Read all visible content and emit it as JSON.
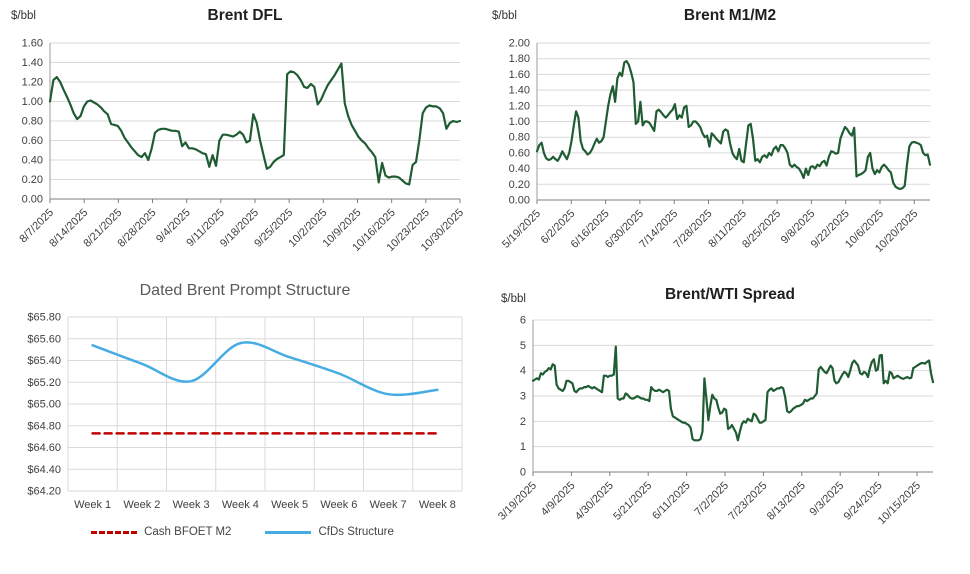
{
  "chart_data": [
    {
      "type": "line",
      "title": "Brent DFL",
      "xlabel": "",
      "ylabel": "$/bbl",
      "ylim": [
        0.0,
        1.6
      ],
      "ytick_step": 0.2,
      "tick_decimals": 2,
      "tick_prefix": "",
      "gridlines": "horizontal",
      "dark_axis": true,
      "label_rotation": -45,
      "label_span": 1.0,
      "legend_position": "none",
      "categories": [
        "8/7/2025",
        "8/14/2025",
        "8/21/2025",
        "8/28/2025",
        "9/4/2025",
        "9/11/2025",
        "9/18/2025",
        "9/25/2025",
        "10/2/2025",
        "10/9/2025",
        "10/16/2025",
        "10/23/2025",
        "10/30/2025"
      ],
      "series": [
        {
          "name": "Brent DFL",
          "color": "#1f5c33",
          "width": 2.2,
          "dash": null,
          "smooth": false,
          "values": [
            1.0,
            1.22,
            1.25,
            1.2,
            1.12,
            1.05,
            0.97,
            0.88,
            0.82,
            0.85,
            0.95,
            1.0,
            1.01,
            0.99,
            0.97,
            0.94,
            0.9,
            0.87,
            0.77,
            0.76,
            0.75,
            0.7,
            0.63,
            0.58,
            0.53,
            0.49,
            0.45,
            0.43,
            0.47,
            0.4,
            0.52,
            0.68,
            0.71,
            0.72,
            0.72,
            0.71,
            0.7,
            0.7,
            0.69,
            0.54,
            0.58,
            0.52,
            0.52,
            0.51,
            0.49,
            0.47,
            0.46,
            0.33,
            0.45,
            0.34,
            0.6,
            0.66,
            0.66,
            0.65,
            0.64,
            0.66,
            0.69,
            0.66,
            0.58,
            0.6,
            0.87,
            0.78,
            0.6,
            0.45,
            0.31,
            0.33,
            0.38,
            0.41,
            0.43,
            0.45,
            1.28,
            1.31,
            1.3,
            1.27,
            1.22,
            1.15,
            1.14,
            1.18,
            1.15,
            0.97,
            1.02,
            1.1,
            1.17,
            1.22,
            1.27,
            1.33,
            1.39,
            0.98,
            0.85,
            0.76,
            0.7,
            0.64,
            0.6,
            0.57,
            0.52,
            0.48,
            0.43,
            0.17,
            0.37,
            0.24,
            0.22,
            0.23,
            0.23,
            0.22,
            0.19,
            0.16,
            0.15,
            0.35,
            0.38,
            0.6,
            0.88,
            0.94,
            0.96,
            0.95,
            0.95,
            0.93,
            0.88,
            0.72,
            0.78,
            0.8,
            0.79,
            0.8
          ]
        }
      ]
    },
    {
      "type": "line",
      "title": "Brent M1/M2",
      "xlabel": "",
      "ylabel": "$/bbl",
      "ylim": [
        0.0,
        2.0
      ],
      "ytick_step": 0.2,
      "tick_decimals": 2,
      "tick_prefix": "",
      "gridlines": "horizontal",
      "dark_axis": true,
      "label_rotation": -45,
      "label_span": 0.96,
      "legend_position": "none",
      "categories": [
        "5/19/2025",
        "6/2/2025",
        "6/16/2025",
        "6/30/2025",
        "7/14/2025",
        "7/28/2025",
        "8/11/2025",
        "8/25/2025",
        "9/8/2025",
        "9/22/2025",
        "10/6/2025",
        "10/20/2025"
      ],
      "series": [
        {
          "name": "Brent M1/M2",
          "color": "#1f5c33",
          "width": 2.2,
          "dash": null,
          "smooth": false,
          "values": [
            0.62,
            0.7,
            0.73,
            0.6,
            0.53,
            0.51,
            0.52,
            0.55,
            0.52,
            0.5,
            0.55,
            0.62,
            0.57,
            0.52,
            0.6,
            0.75,
            0.95,
            1.13,
            1.05,
            0.75,
            0.65,
            0.62,
            0.58,
            0.6,
            0.65,
            0.72,
            0.78,
            0.73,
            0.75,
            0.8,
            1.0,
            1.2,
            1.35,
            1.45,
            1.25,
            1.55,
            1.62,
            1.58,
            1.75,
            1.77,
            1.72,
            1.62,
            1.5,
            0.97,
            1.0,
            1.25,
            0.95,
            1.0,
            1.0,
            0.98,
            0.93,
            0.88,
            1.13,
            1.15,
            1.12,
            1.08,
            1.05,
            1.08,
            1.12,
            1.15,
            1.22,
            1.03,
            1.08,
            1.05,
            1.18,
            1.2,
            0.93,
            0.95,
            1.0,
            1.0,
            0.97,
            0.93,
            0.85,
            0.8,
            0.82,
            0.68,
            0.85,
            0.82,
            0.78,
            0.75,
            0.72,
            0.87,
            0.9,
            0.88,
            0.72,
            0.6,
            0.55,
            0.52,
            0.65,
            0.5,
            0.48,
            0.72,
            0.95,
            0.97,
            0.78,
            0.5,
            0.52,
            0.48,
            0.55,
            0.57,
            0.54,
            0.6,
            0.57,
            0.65,
            0.68,
            0.62,
            0.7,
            0.7,
            0.66,
            0.6,
            0.45,
            0.42,
            0.45,
            0.42,
            0.4,
            0.35,
            0.28,
            0.4,
            0.32,
            0.42,
            0.43,
            0.4,
            0.45,
            0.43,
            0.48,
            0.5,
            0.44,
            0.55,
            0.62,
            0.61,
            0.59,
            0.6,
            0.78,
            0.86,
            0.93,
            0.9,
            0.85,
            0.82,
            0.92,
            0.3,
            0.32,
            0.33,
            0.35,
            0.38,
            0.55,
            0.6,
            0.4,
            0.33,
            0.38,
            0.35,
            0.42,
            0.45,
            0.42,
            0.38,
            0.35,
            0.22,
            0.17,
            0.15,
            0.14,
            0.15,
            0.18,
            0.45,
            0.68,
            0.73,
            0.74,
            0.73,
            0.72,
            0.7,
            0.6,
            0.57,
            0.58,
            0.45
          ]
        }
      ]
    },
    {
      "type": "line",
      "title": "Dated Brent Prompt Structure",
      "xlabel": "",
      "ylabel": "",
      "ylim": [
        64.2,
        65.8
      ],
      "ytick_step": 0.2,
      "tick_decimals": 2,
      "tick_prefix": "$",
      "gridlines": "both",
      "dark_axis": false,
      "label_rotation": 0,
      "between_ticks": true,
      "legend_position": "bottom",
      "categories": [
        "Week 1",
        "Week 2",
        "Week 3",
        "Week 4",
        "Week 5",
        "Week 6",
        "Week 7",
        "Week 8"
      ],
      "series": [
        {
          "name": "Cash BFOET M2",
          "color": "#c00000",
          "width": 2.5,
          "dash": "7 5",
          "smooth": false,
          "values": [
            64.73,
            64.73,
            64.73,
            64.73,
            64.73,
            64.73,
            64.73,
            64.73
          ]
        },
        {
          "name": "CfDs Structure",
          "color": "#47ace4",
          "width": 2.5,
          "dash": null,
          "smooth": true,
          "values": [
            65.54,
            65.37,
            65.21,
            65.56,
            65.43,
            65.28,
            65.09,
            65.13
          ]
        }
      ]
    },
    {
      "type": "line",
      "title": "Brent/WTI Spread",
      "xlabel": "",
      "ylabel": "$/bbl",
      "ylim": [
        0,
        6
      ],
      "ytick_step": 1,
      "tick_decimals": 0,
      "tick_prefix": "",
      "gridlines": "horizontal",
      "dark_axis": true,
      "label_rotation": -45,
      "label_span": 0.96,
      "legend_position": "none",
      "categories": [
        "3/19/2025",
        "4/9/2025",
        "4/30/2025",
        "5/21/2025",
        "6/11/2025",
        "7/2/2025",
        "7/23/2025",
        "8/13/2025",
        "9/3/2025",
        "9/24/2025",
        "10/15/2025"
      ],
      "series": [
        {
          "name": "Brent/WTI Spread",
          "color": "#1f5c33",
          "width": 2.2,
          "dash": null,
          "smooth": false,
          "values": [
            3.6,
            3.65,
            3.7,
            3.65,
            3.9,
            3.85,
            3.95,
            4.0,
            4.1,
            4.05,
            4.25,
            4.2,
            3.45,
            3.3,
            3.25,
            3.2,
            3.3,
            3.6,
            3.6,
            3.55,
            3.5,
            3.2,
            3.15,
            3.25,
            3.3,
            3.3,
            3.35,
            3.35,
            3.4,
            3.35,
            3.3,
            3.35,
            3.3,
            3.25,
            3.2,
            3.15,
            3.8,
            3.8,
            3.75,
            3.8,
            3.8,
            3.85,
            4.95,
            2.9,
            2.85,
            2.9,
            2.9,
            3.1,
            3.05,
            2.95,
            2.9,
            2.9,
            2.95,
            3.0,
            2.95,
            2.9,
            2.9,
            2.85,
            2.85,
            2.8,
            3.35,
            3.25,
            3.2,
            3.2,
            3.25,
            3.2,
            3.15,
            3.2,
            3.25,
            3.2,
            2.5,
            2.2,
            2.15,
            2.1,
            2.05,
            2.0,
            1.95,
            1.95,
            1.9,
            1.85,
            1.75,
            1.3,
            1.25,
            1.25,
            1.25,
            1.3,
            1.6,
            3.7,
            2.9,
            2.05,
            2.6,
            3.05,
            2.9,
            2.85,
            2.55,
            2.3,
            2.35,
            2.5,
            2.45,
            1.7,
            1.75,
            1.85,
            1.7,
            1.55,
            1.25,
            1.6,
            1.9,
            2.0,
            1.95,
            2.1,
            2.05,
            2.0,
            2.3,
            2.25,
            2.1,
            1.95,
            1.95,
            2.0,
            2.05,
            3.15,
            3.25,
            3.3,
            3.2,
            3.25,
            3.3,
            3.3,
            3.35,
            3.3,
            2.95,
            2.4,
            2.35,
            2.4,
            2.5,
            2.55,
            2.6,
            2.6,
            2.65,
            2.7,
            2.85,
            2.8,
            2.85,
            2.9,
            2.9,
            3.0,
            3.1,
            4.05,
            4.15,
            4.05,
            3.95,
            3.9,
            4.05,
            4.2,
            4.1,
            3.6,
            3.5,
            3.55,
            3.7,
            3.85,
            3.95,
            3.9,
            3.75,
            4.0,
            4.3,
            4.4,
            4.3,
            4.2,
            3.9,
            3.85,
            3.95,
            3.9,
            3.75,
            4.1,
            4.35,
            4.45,
            4.0,
            4.05,
            4.6,
            4.62,
            3.5,
            3.6,
            3.5,
            3.95,
            3.9,
            3.7,
            3.75,
            3.8,
            3.75,
            3.7,
            3.68,
            3.72,
            3.75,
            3.7,
            3.72,
            4.1,
            4.15,
            4.2,
            4.25,
            4.3,
            4.3,
            4.28,
            4.35,
            4.4,
            3.9,
            3.55
          ]
        }
      ]
    }
  ]
}
